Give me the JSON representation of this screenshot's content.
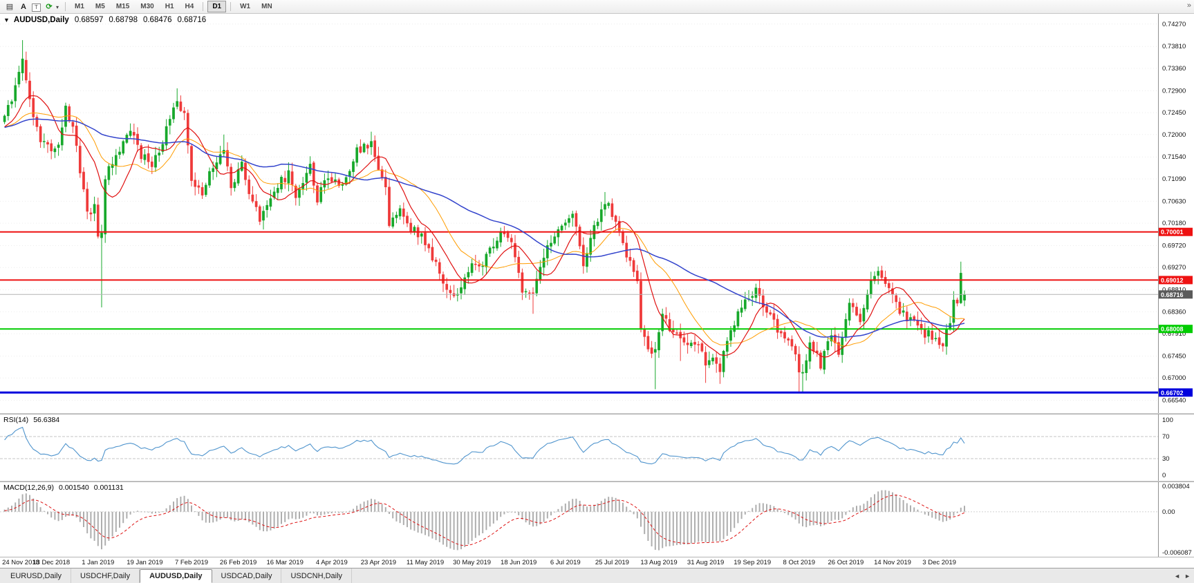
{
  "toolbar": {
    "icons": [
      {
        "name": "chart-list-icon",
        "glyph": "▤"
      },
      {
        "name": "annotation-text-icon",
        "glyph": "A"
      },
      {
        "name": "text-box-icon",
        "glyph": "T"
      },
      {
        "name": "refresh-icon",
        "glyph": "⟳"
      },
      {
        "name": "dropdown-caret-icon",
        "glyph": "▾"
      }
    ],
    "overflow_glyph": "»",
    "timeframes": [
      "M1",
      "M5",
      "M15",
      "M30",
      "H1",
      "H4",
      "D1",
      "W1",
      "MN"
    ],
    "active_timeframe": "D1",
    "separators_after": [
      "H4",
      "D1"
    ]
  },
  "chart": {
    "symbol_label": "AUDUSD,Daily",
    "one_click_arrow": "▼",
    "ohlc": {
      "open": "0.68597",
      "high": "0.68798",
      "low": "0.68476",
      "close": "0.68716"
    }
  },
  "rsi": {
    "label": "RSI(14)",
    "value": "56.6384",
    "axis": [
      "100",
      "70",
      "30",
      "0"
    ],
    "axis_values": [
      100,
      70,
      30,
      0
    ],
    "levels": [
      70,
      30
    ],
    "line_color": "#4f94cd"
  },
  "macd": {
    "label": "MACD(12,26,9)",
    "value_main": "0.001540",
    "value_signal": "0.001131",
    "axis": {
      "max": "0.003804",
      "zero": "0.00",
      "min": "-0.006087"
    },
    "histogram_color": "#aeaeae",
    "signal_color": "#dd1111"
  },
  "time_axis": {
    "labels": [
      "24 Nov 2018",
      "13 Dec 2018",
      "1 Jan 2019",
      "19 Jan 2019",
      "7 Feb 2019",
      "26 Feb 2019",
      "16 Mar 2019",
      "4 Apr 2019",
      "23 Apr 2019",
      "11 May 2019",
      "30 May 2019",
      "18 Jun 2019",
      "6 Jul 2019",
      "25 Jul 2019",
      "13 Aug 2019",
      "31 Aug 2019",
      "19 Sep 2019",
      "8 Oct 2019",
      "26 Oct 2019",
      "14 Nov 2019",
      "3 Dec 2019"
    ]
  },
  "tabs": {
    "items": [
      "EURUSD,Daily",
      "USDCHF,Daily",
      "AUDUSD,Daily",
      "USDCAD,Daily",
      "USDCNH,Daily"
    ],
    "active": "AUDUSD,Daily",
    "scroll_left": "◄",
    "scroll_right": "►"
  },
  "colors": {
    "bull": "#17a82b",
    "bear": "#ef3a3a",
    "ma_orange": "#ff9c00",
    "ma_red": "#e01010",
    "ma_blue": "#3344cc",
    "grid": "#ececec",
    "axis_text": "#111111",
    "current_line": "#b4b4b4",
    "current_tag_bg": "#5a5a5a"
  },
  "chart_data": {
    "type": "candlestick",
    "symbol": "AUDUSD",
    "timeframe": "Daily",
    "bars_total": 268,
    "label_every_bars": 13,
    "last_bar": {
      "open": 0.68597,
      "high": 0.68798,
      "low": 0.68476,
      "close": 0.68716
    },
    "y_axis_ticks": [
      "0.74270",
      "0.73810",
      "0.73360",
      "0.72900",
      "0.72450",
      "0.72000",
      "0.71540",
      "0.71090",
      "0.70630",
      "0.70180",
      "0.69720",
      "0.69270",
      "0.68810",
      "0.68360",
      "0.67910",
      "0.67450",
      "0.67000",
      "0.66540"
    ],
    "x_axis_labels": [
      "24 Nov 2018",
      "13 Dec 2018",
      "1 Jan 2019",
      "19 Jan 2019",
      "7 Feb 2019",
      "26 Feb 2019",
      "16 Mar 2019",
      "4 Apr 2019",
      "23 Apr 2019",
      "11 May 2019",
      "30 May 2019",
      "18 Jun 2019",
      "6 Jul 2019",
      "25 Jul 2019",
      "13 Aug 2019",
      "31 Aug 2019",
      "19 Sep 2019",
      "8 Oct 2019",
      "26 Oct 2019",
      "14 Nov 2019",
      "3 Dec 2019"
    ],
    "horizontal_levels": [
      {
        "price": 0.70001,
        "label": "0.70001",
        "color": "#ee1111",
        "width": 2
      },
      {
        "price": 0.69012,
        "label": "0.69012",
        "color": "#ee1111",
        "width": 2
      },
      {
        "price": 0.68008,
        "label": "0.68008",
        "color": "#00cc00",
        "width": 2
      },
      {
        "price": 0.66702,
        "label": "0.66702",
        "color": "#0000dd",
        "width": 3
      }
    ],
    "current_price": {
      "value": 0.68716,
      "label": "0.68716"
    },
    "moving_averages": [
      {
        "period": 21,
        "color_key": "ma_orange",
        "width": 1
      },
      {
        "period": 10,
        "color_key": "ma_red",
        "width": 1.2
      },
      {
        "period": 50,
        "color_key": "ma_blue",
        "width": 1.5
      }
    ],
    "indicators": {
      "rsi_period": 14,
      "macd_params": [
        12,
        26,
        9
      ]
    },
    "ranges": {
      "price_min": 0.6628,
      "price_max": 0.7448,
      "macd_min": -0.0063,
      "macd_max": 0.004
    },
    "warmup_anchors": [
      [
        -60,
        0.7135
      ],
      [
        -30,
        0.7235
      ],
      [
        -5,
        0.721
      ]
    ],
    "price_path_anchors": [
      [
        0,
        0.723
      ],
      [
        3,
        0.73
      ],
      [
        5,
        0.736
      ],
      [
        7,
        0.727
      ],
      [
        10,
        0.7185
      ],
      [
        13,
        0.7172
      ],
      [
        15,
        0.7185
      ],
      [
        17,
        0.7255
      ],
      [
        19,
        0.7215
      ],
      [
        21,
        0.712
      ],
      [
        23,
        0.7042
      ],
      [
        25,
        0.7048
      ],
      [
        26,
        0.699
      ],
      [
        27,
        0.6995
      ],
      [
        28,
        0.7115
      ],
      [
        32,
        0.717
      ],
      [
        35,
        0.7205
      ],
      [
        38,
        0.716
      ],
      [
        41,
        0.7128
      ],
      [
        44,
        0.719
      ],
      [
        47,
        0.7258
      ],
      [
        48,
        0.7272
      ],
      [
        50,
        0.7238
      ],
      [
        52,
        0.7108
      ],
      [
        55,
        0.7085
      ],
      [
        58,
        0.7138
      ],
      [
        61,
        0.7162
      ],
      [
        63,
        0.7095
      ],
      [
        66,
        0.7138
      ],
      [
        68,
        0.7085
      ],
      [
        71,
        0.7028
      ],
      [
        75,
        0.7092
      ],
      [
        79,
        0.7118
      ],
      [
        81,
        0.7075
      ],
      [
        85,
        0.7135
      ],
      [
        87,
        0.7068
      ],
      [
        90,
        0.7112
      ],
      [
        94,
        0.7098
      ],
      [
        98,
        0.7168
      ],
      [
        102,
        0.7178
      ],
      [
        104,
        0.7138
      ],
      [
        106,
        0.7098
      ],
      [
        107,
        0.7018
      ],
      [
        110,
        0.7042
      ],
      [
        113,
        0.7005
      ],
      [
        116,
        0.6992
      ],
      [
        119,
        0.6945
      ],
      [
        122,
        0.6898
      ],
      [
        124,
        0.6868
      ],
      [
        127,
        0.6888
      ],
      [
        130,
        0.6928
      ],
      [
        133,
        0.6938
      ],
      [
        136,
        0.6978
      ],
      [
        139,
        0.6998
      ],
      [
        142,
        0.6958
      ],
      [
        144,
        0.6878
      ],
      [
        147,
        0.6872
      ],
      [
        150,
        0.6948
      ],
      [
        153,
        0.6992
      ],
      [
        156,
        0.7028
      ],
      [
        158,
        0.7042
      ],
      [
        161,
        0.6938
      ],
      [
        164,
        0.7012
      ],
      [
        167,
        0.7062
      ],
      [
        169,
        0.7038
      ],
      [
        172,
        0.6978
      ],
      [
        174,
        0.6932
      ],
      [
        176,
        0.6892
      ],
      [
        177,
        0.6802
      ],
      [
        179,
        0.6758
      ],
      [
        181,
        0.6762
      ],
      [
        183,
        0.6838
      ],
      [
        186,
        0.6788
      ],
      [
        189,
        0.6778
      ],
      [
        192,
        0.6772
      ],
      [
        195,
        0.6732
      ],
      [
        197,
        0.6738
      ],
      [
        199,
        0.6718
      ],
      [
        200,
        0.6758
      ],
      [
        203,
        0.6812
      ],
      [
        206,
        0.6858
      ],
      [
        209,
        0.6882
      ],
      [
        212,
        0.6832
      ],
      [
        215,
        0.6802
      ],
      [
        218,
        0.6768
      ],
      [
        220,
        0.6756
      ],
      [
        221,
        0.6706
      ],
      [
        222,
        0.6712
      ],
      [
        224,
        0.6772
      ],
      [
        227,
        0.6728
      ],
      [
        230,
        0.6788
      ],
      [
        232,
        0.6758
      ],
      [
        235,
        0.6852
      ],
      [
        238,
        0.6818
      ],
      [
        241,
        0.6896
      ],
      [
        243,
        0.6922
      ],
      [
        246,
        0.6876
      ],
      [
        249,
        0.6842
      ],
      [
        252,
        0.6818
      ],
      [
        255,
        0.6792
      ],
      [
        258,
        0.6786
      ],
      [
        261,
        0.6772
      ],
      [
        263,
        0.6822
      ],
      [
        264,
        0.6856
      ],
      [
        265,
        0.6862
      ],
      [
        266,
        0.6918
      ],
      [
        267,
        0.68716
      ]
    ],
    "bar_overrides": {
      "5": {
        "h": 0.7394
      },
      "27": {
        "o": 0.6988,
        "l": 0.6845,
        "c": 0.6998
      },
      "48": {
        "h": 0.7295
      },
      "61": {
        "h": 0.72
      },
      "72": {
        "l": 0.7005
      },
      "102": {
        "h": 0.7206
      },
      "124": {
        "l": 0.686
      },
      "147": {
        "l": 0.6832
      },
      "167": {
        "h": 0.7082
      },
      "181": {
        "l": 0.6677
      },
      "188": {
        "l": 0.6735
      },
      "195": {
        "l": 0.669
      },
      "199": {
        "l": 0.6688
      },
      "221": {
        "l": 0.6672
      },
      "222": {
        "l": 0.667
      },
      "243": {
        "h": 0.6929
      },
      "261": {
        "l": 0.6754
      },
      "266": {
        "h": 0.6939,
        "l": 0.6852
      },
      "267": {
        "o": 0.68597,
        "h": 0.68798,
        "l": 0.68476,
        "c": 0.68716
      }
    }
  }
}
